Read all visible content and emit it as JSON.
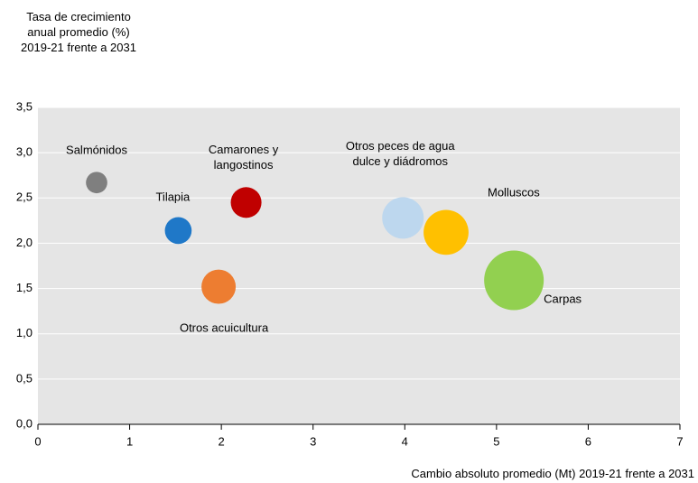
{
  "chart_data": {
    "type": "scatter",
    "y_title": "Tasa de crecimiento anual promedio (%) 2019-21 frente a 2031",
    "x_title": "Cambio absoluto promedio (Mt) 2019-21 frente a 2031",
    "xlim": [
      0,
      7
    ],
    "xticks": [
      0,
      1,
      2,
      3,
      4,
      5,
      6,
      7
    ],
    "ylim": [
      0,
      3.5
    ],
    "yticks": [
      {
        "value": 0,
        "label": "0,0"
      },
      {
        "value": 0.5,
        "label": "0,5"
      },
      {
        "value": 1,
        "label": "1,0"
      },
      {
        "value": 1.5,
        "label": "1,5"
      },
      {
        "value": 2,
        "label": "2,0"
      },
      {
        "value": 2.5,
        "label": "2,5"
      },
      {
        "value": 3,
        "label": "3,0"
      },
      {
        "value": 3.5,
        "label": "3,5"
      }
    ],
    "grid": true,
    "series": [
      {
        "name": "Salmónidos",
        "color": "#7f7f7f",
        "x": [
          0.64
        ],
        "values": [
          2.67
        ],
        "sizes": [
          14
        ]
      },
      {
        "name": "Tilapia",
        "color": "#1f78c8",
        "x": [
          1.53
        ],
        "values": [
          2.14
        ],
        "sizes": [
          22
        ]
      },
      {
        "name": "Camarones y langostinos",
        "color": "#c00000",
        "x": [
          2.27
        ],
        "values": [
          2.45
        ],
        "sizes": [
          29
        ]
      },
      {
        "name": "Otros acuicultura",
        "color": "#ed7d31",
        "x": [
          1.97
        ],
        "values": [
          1.52
        ],
        "sizes": [
          36
        ]
      },
      {
        "name": "Otros peces de agua dulce y diádromos",
        "color": "#bdd7ee",
        "x": [
          3.98
        ],
        "values": [
          2.28
        ],
        "sizes": [
          53
        ]
      },
      {
        "name": "Molluscos",
        "color": "#ffc000",
        "x": [
          4.45
        ],
        "values": [
          2.12
        ],
        "sizes": [
          62
        ]
      },
      {
        "name": "Carpas",
        "color": "#92d050",
        "x": [
          5.19
        ],
        "values": [
          1.59
        ],
        "sizes": [
          109
        ]
      }
    ]
  }
}
